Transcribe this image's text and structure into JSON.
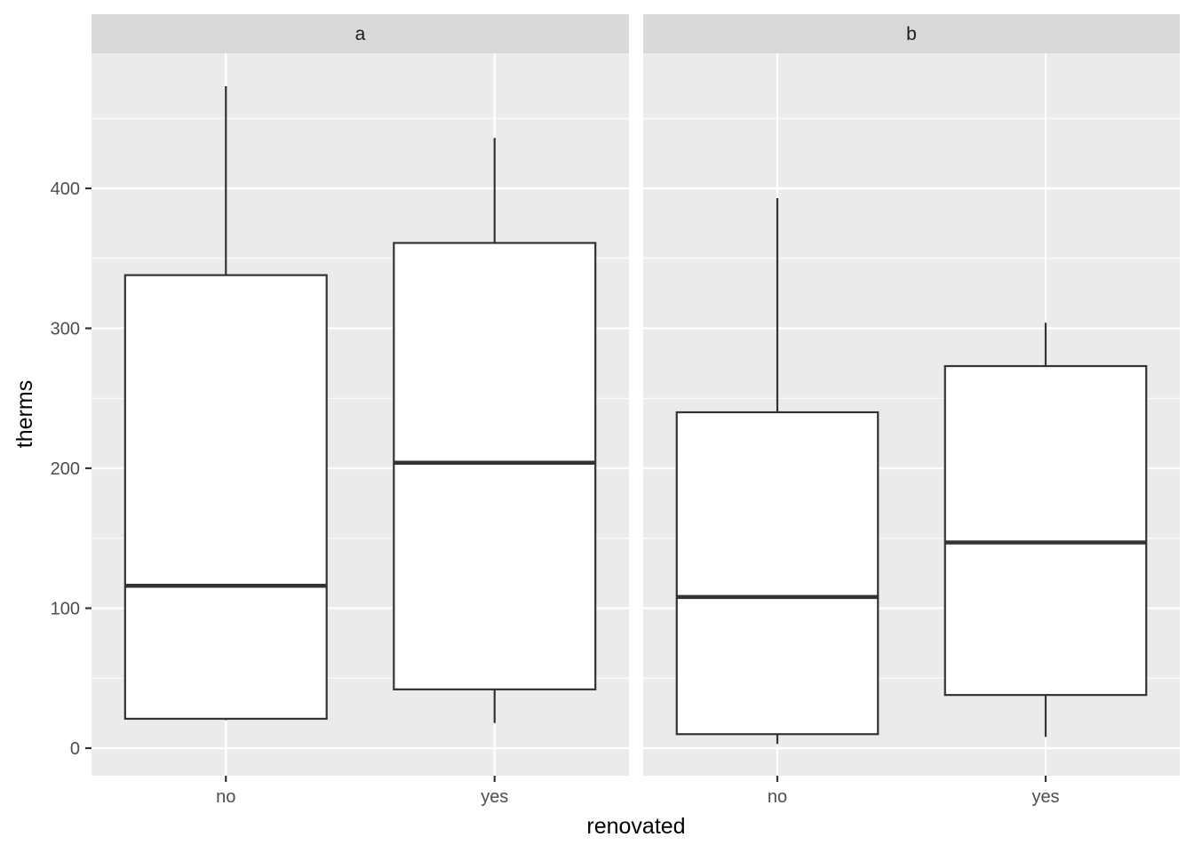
{
  "chart_data": {
    "type": "boxplot",
    "xlabel": "renovated",
    "ylabel": "therms",
    "categories": [
      "no",
      "yes"
    ],
    "y_ticks": [
      0,
      100,
      200,
      300,
      400
    ],
    "ylim": [
      -20,
      495
    ],
    "grid": true,
    "panels": [
      {
        "label": "a",
        "boxes": [
          {
            "category": "no",
            "whisker_low": 20,
            "q1": 21,
            "median": 116,
            "q3": 338,
            "whisker_high": 473
          },
          {
            "category": "yes",
            "whisker_low": 18,
            "q1": 42,
            "median": 204,
            "q3": 361,
            "whisker_high": 436
          }
        ]
      },
      {
        "label": "b",
        "boxes": [
          {
            "category": "no",
            "whisker_low": 3,
            "q1": 10,
            "median": 108,
            "q3": 240,
            "whisker_high": 393
          },
          {
            "category": "yes",
            "whisker_low": 8,
            "q1": 38,
            "median": 147,
            "q3": 273,
            "whisker_high": 304
          }
        ]
      }
    ]
  }
}
